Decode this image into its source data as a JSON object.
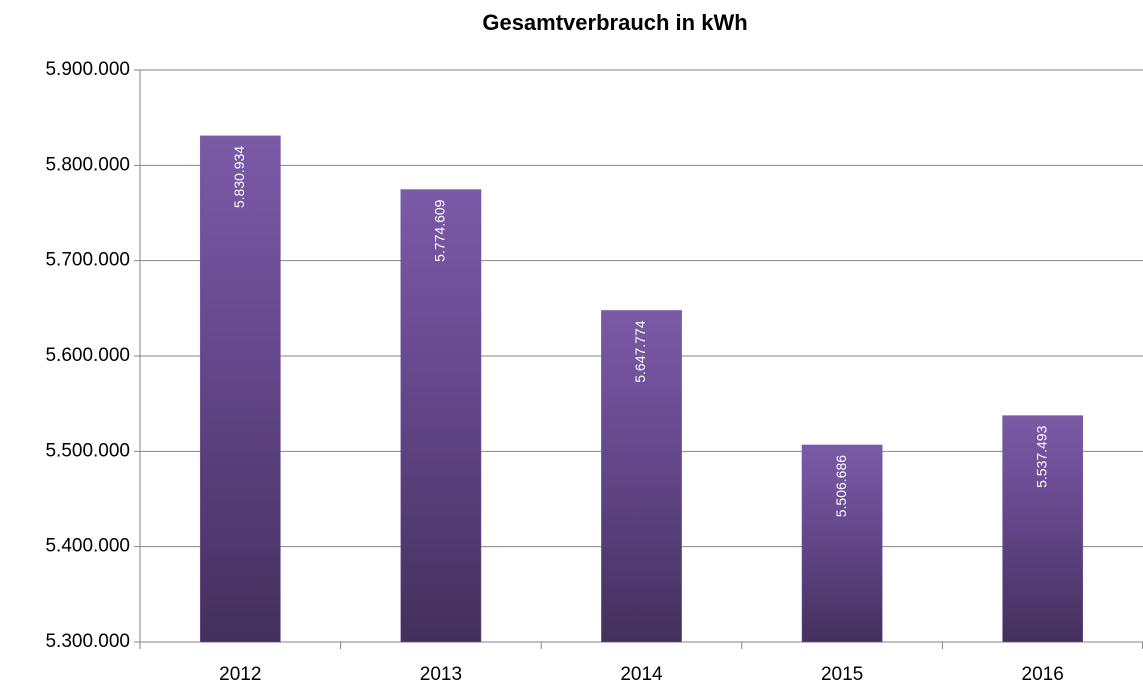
{
  "chart_data": {
    "type": "bar",
    "title": "Gesamtverbrauch in kWh",
    "categories": [
      "2012",
      "2013",
      "2014",
      "2015",
      "2016"
    ],
    "values": [
      5830934,
      5774609,
      5647774,
      5506686,
      5537493
    ],
    "value_labels": [
      "5.830.934",
      "5.774.609",
      "5.647.774",
      "5.506.686",
      "5.537.493"
    ],
    "color": "#7b5aa6",
    "ylim": [
      5300000,
      5900000
    ],
    "yticks": [
      {
        "value": 5300000,
        "label": "5.300.000"
      },
      {
        "value": 5400000,
        "label": "5.400.000"
      },
      {
        "value": 5500000,
        "label": "5.500.000"
      },
      {
        "value": 5600000,
        "label": "5.600.000"
      },
      {
        "value": 5700000,
        "label": "5.700.000"
      },
      {
        "value": 5800000,
        "label": "5.800.000"
      },
      {
        "value": 5900000,
        "label": "5.900.000"
      }
    ],
    "grid": true
  }
}
